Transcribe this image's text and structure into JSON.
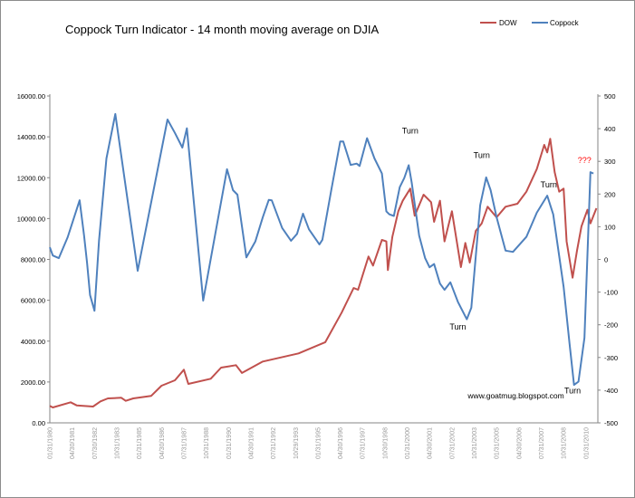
{
  "chart_data": {
    "type": "line",
    "title": "Coppock Turn Indicator  - 14 month moving average on DJIA",
    "xlabel": "",
    "ylabel": "",
    "legend_position": "top-right",
    "grid": false,
    "x_tick_labels": [
      "01/31/1980",
      "04/30/1981",
      "07/30/1982",
      "10/31/1983",
      "01/31/1985",
      "04/30/1986",
      "07/31/1987",
      "10/31/1988",
      "01/31/1990",
      "04/30/1991",
      "07/31/1992",
      "10/29/1993",
      "01/31/1995",
      "04/30/1996",
      "07/31/1997",
      "10/30/1998",
      "01/31/2000",
      "04/30/2001",
      "07/31/2002",
      "10/31/2003",
      "01/31/2005",
      "04/30/2006",
      "07/31/2007",
      "10/31/2008",
      "01/31/2010"
    ],
    "xlim": [
      "1980-01",
      "2010-09"
    ],
    "y_left": {
      "ylim": [
        0,
        16000
      ],
      "ticks": [
        "0.00",
        "2000.00",
        "4000.00",
        "6000.00",
        "8000.00",
        "10000.00",
        "12000.00",
        "14000.00",
        "16000.00"
      ]
    },
    "y_right": {
      "ylim": [
        -500,
        500
      ],
      "ticks": [
        "-500",
        "-400",
        "-300",
        "-200",
        "-100",
        "0",
        "100",
        "200",
        "300",
        "400",
        "500"
      ]
    },
    "series": [
      {
        "name": "DOW",
        "color": "#c0504d",
        "axis": "left",
        "points": [
          [
            "1980-01",
            829
          ],
          [
            "1980-03",
            754
          ],
          [
            "1981-03",
            1006
          ],
          [
            "1981-07",
            856
          ],
          [
            "1982-06",
            798
          ],
          [
            "1982-11",
            1050
          ],
          [
            "1983-04",
            1197
          ],
          [
            "1984-01",
            1228
          ],
          [
            "1984-04",
            1077
          ],
          [
            "1984-09",
            1197
          ],
          [
            "1985-09",
            1316
          ],
          [
            "1986-04",
            1817
          ],
          [
            "1987-01",
            2083
          ],
          [
            "1987-07",
            2602
          ],
          [
            "1987-10",
            1906
          ],
          [
            "1989-01",
            2158
          ],
          [
            "1989-08",
            2704
          ],
          [
            "1990-06",
            2823
          ],
          [
            "1990-10",
            2440
          ],
          [
            "1991-12",
            3000
          ],
          [
            "1993-12",
            3400
          ],
          [
            "1995-06",
            3950
          ],
          [
            "1996-05",
            5400
          ],
          [
            "1997-01",
            6600
          ],
          [
            "1997-04",
            6516
          ],
          [
            "1997-11",
            8143
          ],
          [
            "1998-02",
            7700
          ],
          [
            "1998-08",
            8954
          ],
          [
            "1998-11",
            8880
          ],
          [
            "1998-12",
            7477
          ],
          [
            "1999-03",
            9100
          ],
          [
            "1999-07",
            10359
          ],
          [
            "1999-10",
            10873
          ],
          [
            "2000-03",
            11467
          ],
          [
            "2000-06",
            10135
          ],
          [
            "2000-12",
            11170
          ],
          [
            "2001-05",
            10800
          ],
          [
            "2001-07",
            9840
          ],
          [
            "2001-11",
            10873
          ],
          [
            "2002-02",
            8880
          ],
          [
            "2002-07",
            10359
          ],
          [
            "2003-01",
            7624
          ],
          [
            "2003-04",
            8807
          ],
          [
            "2003-07",
            7845
          ],
          [
            "2003-11",
            9397
          ],
          [
            "2004-03",
            9765
          ],
          [
            "2004-07",
            10580
          ],
          [
            "2005-01",
            10062
          ],
          [
            "2005-07",
            10580
          ],
          [
            "2006-03",
            10727
          ],
          [
            "2006-09",
            11317
          ],
          [
            "2007-04",
            12425
          ],
          [
            "2007-09",
            13608
          ],
          [
            "2007-11",
            13240
          ],
          [
            "2008-01",
            13905
          ],
          [
            "2008-04",
            12278
          ],
          [
            "2008-07",
            11317
          ],
          [
            "2008-10",
            11467
          ],
          [
            "2008-12",
            8880
          ],
          [
            "2009-04",
            7106
          ],
          [
            "2009-07",
            8435
          ],
          [
            "2009-10",
            9619
          ],
          [
            "2010-02",
            10430
          ],
          [
            "2010-04",
            9765
          ],
          [
            "2010-08",
            10505
          ]
        ]
      },
      {
        "name": "Coppock",
        "color": "#4f81bd",
        "axis": "right",
        "points": [
          [
            "1980-01",
            37
          ],
          [
            "1980-03",
            12
          ],
          [
            "1980-07",
            4
          ],
          [
            "1981-01",
            68
          ],
          [
            "1981-09",
            181
          ],
          [
            "1981-12",
            73
          ],
          [
            "1982-02",
            -10
          ],
          [
            "1982-04",
            -109
          ],
          [
            "1982-07",
            -157
          ],
          [
            "1982-10",
            57
          ],
          [
            "1983-03",
            309
          ],
          [
            "1983-09",
            445
          ],
          [
            "1984-12",
            -35
          ],
          [
            "1986-08",
            428
          ],
          [
            "1987-01",
            387
          ],
          [
            "1987-06",
            342
          ],
          [
            "1987-09",
            401
          ],
          [
            "1988-08",
            -126
          ],
          [
            "1989-12",
            276
          ],
          [
            "1990-04",
            212
          ],
          [
            "1990-07",
            198
          ],
          [
            "1991-01",
            6
          ],
          [
            "1991-07",
            55
          ],
          [
            "1991-12",
            129
          ],
          [
            "1992-04",
            182
          ],
          [
            "1992-06",
            181
          ],
          [
            "1993-01",
            96
          ],
          [
            "1993-07",
            57
          ],
          [
            "1993-11",
            78
          ],
          [
            "1994-03",
            140
          ],
          [
            "1994-07",
            92
          ],
          [
            "1995-02",
            46
          ],
          [
            "1995-04",
            60
          ],
          [
            "1995-10",
            212
          ],
          [
            "1996-04",
            361
          ],
          [
            "1996-06",
            361
          ],
          [
            "1996-11",
            289
          ],
          [
            "1997-03",
            293
          ],
          [
            "1997-05",
            286
          ],
          [
            "1997-10",
            371
          ],
          [
            "1998-03",
            309
          ],
          [
            "1998-08",
            263
          ],
          [
            "1998-11",
            147
          ],
          [
            "1999-01",
            138
          ],
          [
            "1999-04",
            133
          ],
          [
            "1999-08",
            221
          ],
          [
            "1999-11",
            249
          ],
          [
            "2000-02",
            288
          ],
          [
            "2000-04",
            235
          ],
          [
            "2000-09",
            73
          ],
          [
            "2001-01",
            4
          ],
          [
            "2001-04",
            -24
          ],
          [
            "2001-07",
            -14
          ],
          [
            "2001-11",
            -74
          ],
          [
            "2002-02",
            -93
          ],
          [
            "2002-06",
            -70
          ],
          [
            "2002-11",
            -130
          ],
          [
            "2003-05",
            -183
          ],
          [
            "2003-08",
            -148
          ],
          [
            "2004-02",
            166
          ],
          [
            "2004-06",
            251
          ],
          [
            "2004-09",
            212
          ],
          [
            "2005-01",
            129
          ],
          [
            "2005-07",
            27
          ],
          [
            "2005-12",
            23
          ],
          [
            "2006-09",
            69
          ],
          [
            "2007-04",
            143
          ],
          [
            "2007-11",
            195
          ],
          [
            "2008-03",
            138
          ],
          [
            "2008-10",
            -84
          ],
          [
            "2009-02",
            -259
          ],
          [
            "2009-05",
            -384
          ],
          [
            "2009-08",
            -374
          ],
          [
            "2009-12",
            -240
          ],
          [
            "2010-04",
            267
          ],
          [
            "2010-06",
            263
          ]
        ]
      }
    ],
    "annotations": [
      {
        "text": "Turn",
        "date": "2000-03",
        "value_right": 385,
        "color": "#000000"
      },
      {
        "text": "Turn",
        "date": "2004-03",
        "value_right": 310,
        "color": "#000000"
      },
      {
        "text": "Turn",
        "date": "2002-11",
        "value_right": -215,
        "color": "#000000"
      },
      {
        "text": "Turn",
        "date": "2007-12",
        "value_right": 220,
        "color": "#000000"
      },
      {
        "text": "Turn",
        "date": "2009-04",
        "value_right": -410,
        "color": "#000000"
      },
      {
        "text": "???",
        "date": "2009-12",
        "value_right": 295,
        "color": "#ff0000"
      },
      {
        "text": "www.goatmug.blogspot.com",
        "date": "2006-02",
        "value_right": -425,
        "color": "#000000"
      }
    ]
  }
}
